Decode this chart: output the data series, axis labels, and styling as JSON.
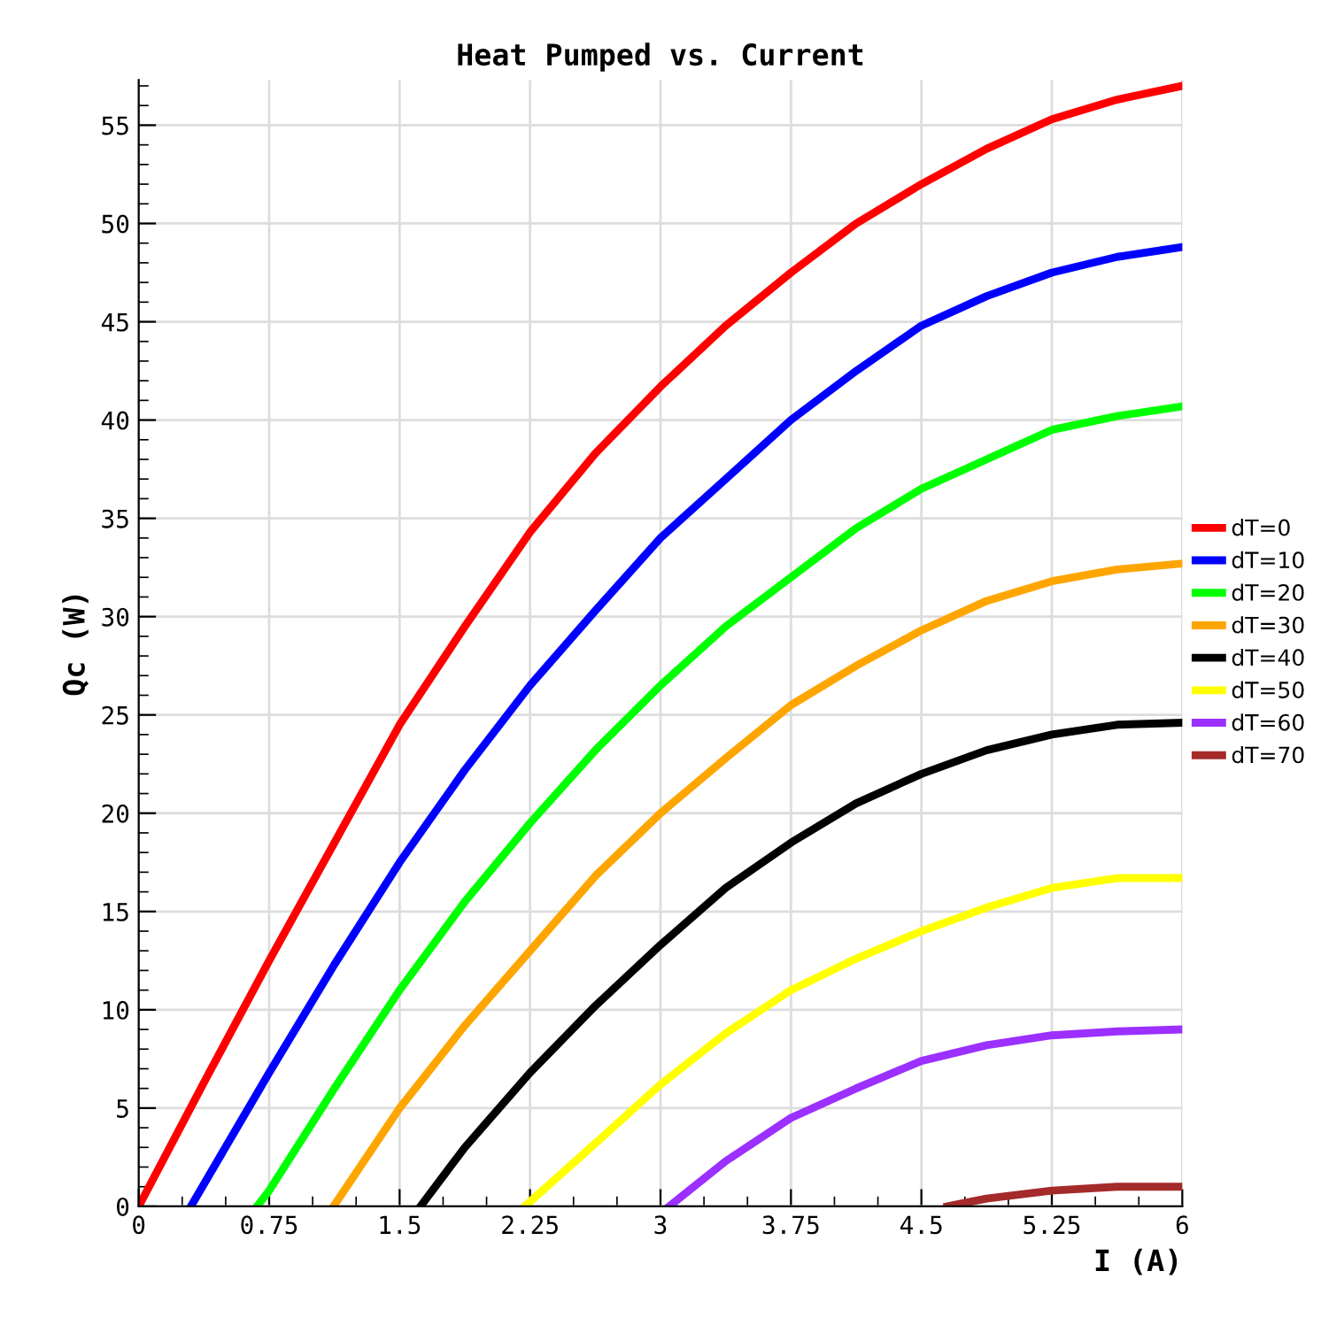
{
  "chart_data": {
    "type": "line",
    "title": "Heat Pumped vs. Current",
    "xlabel": "I (A)",
    "ylabel": "Qc (W)",
    "xlim": [
      0,
      6
    ],
    "ylim": [
      0,
      57.3
    ],
    "xticks": [
      0,
      0.75,
      1.5,
      2.25,
      3,
      3.75,
      4.5,
      5.25,
      6
    ],
    "yticks": [
      0,
      5,
      10,
      15,
      20,
      25,
      30,
      35,
      40,
      45,
      50,
      55
    ],
    "grid": true,
    "legend": "right",
    "marker": "none",
    "line_style": "solid",
    "series": [
      {
        "name": "dT=0",
        "color": "#ff0000",
        "x": [
          0,
          0.375,
          0.75,
          1.125,
          1.5,
          1.875,
          2.25,
          2.625,
          3,
          3.375,
          3.75,
          4.125,
          4.5,
          4.875,
          5.25,
          5.625,
          6
        ],
        "values": [
          0,
          6.3,
          12.5,
          18.5,
          24.5,
          29.5,
          34.3,
          38.3,
          41.7,
          44.8,
          47.5,
          50,
          52,
          53.8,
          55.3,
          56.3,
          57
        ]
      },
      {
        "name": "dT=10",
        "color": "#0000ff",
        "x": [
          0.3,
          0.75,
          1.125,
          1.5,
          1.875,
          2.25,
          2.625,
          3,
          3.375,
          3.75,
          4.125,
          4.5,
          4.875,
          5.25,
          5.625,
          6
        ],
        "values": [
          0,
          6.8,
          12.3,
          17.5,
          22.2,
          26.5,
          30.3,
          34,
          37,
          40,
          42.5,
          44.8,
          46.3,
          47.5,
          48.3,
          48.8
        ]
      },
      {
        "name": "dT=20",
        "color": "#00ff00",
        "x": [
          0.68,
          0.75,
          1.125,
          1.5,
          1.875,
          2.25,
          2.625,
          3,
          3.375,
          3.75,
          4.125,
          4.5,
          4.875,
          5.25,
          5.625,
          6
        ],
        "values": [
          0,
          0.8,
          6,
          11,
          15.5,
          19.5,
          23.2,
          26.5,
          29.5,
          32,
          34.5,
          36.5,
          38,
          39.5,
          40.2,
          40.7
        ]
      },
      {
        "name": "dT=30",
        "color": "#ffa500",
        "x": [
          1.12,
          1.5,
          1.875,
          2.25,
          2.625,
          3,
          3.375,
          3.75,
          4.125,
          4.5,
          4.875,
          5.25,
          5.625,
          6
        ],
        "values": [
          0,
          5,
          9.2,
          13,
          16.8,
          20,
          22.8,
          25.5,
          27.5,
          29.3,
          30.8,
          31.8,
          32.4,
          32.7
        ]
      },
      {
        "name": "dT=40",
        "color": "#000000",
        "x": [
          1.62,
          1.875,
          2.25,
          2.625,
          3,
          3.375,
          3.75,
          4.125,
          4.5,
          4.875,
          5.25,
          5.625,
          6
        ],
        "values": [
          0,
          3,
          6.8,
          10.2,
          13.3,
          16.2,
          18.5,
          20.5,
          22,
          23.2,
          24,
          24.5,
          24.6
        ]
      },
      {
        "name": "dT=50",
        "color": "#ffff00",
        "x": [
          2.22,
          2.625,
          3,
          3.375,
          3.75,
          4.125,
          4.5,
          4.875,
          5.25,
          5.625,
          6
        ],
        "values": [
          0,
          3.2,
          6.2,
          8.8,
          11,
          12.6,
          14,
          15.2,
          16.2,
          16.7,
          16.7
        ]
      },
      {
        "name": "dT=60",
        "color": "#9b30ff",
        "x": [
          3.05,
          3.375,
          3.75,
          4.125,
          4.5,
          4.875,
          5.25,
          5.625,
          6
        ],
        "values": [
          0,
          2.3,
          4.5,
          6,
          7.4,
          8.2,
          8.7,
          8.9,
          9
        ]
      },
      {
        "name": "dT=70",
        "color": "#a52a2a",
        "x": [
          4.65,
          4.875,
          5.25,
          5.625,
          6
        ],
        "values": [
          0,
          0.4,
          0.8,
          1,
          1
        ]
      }
    ]
  }
}
